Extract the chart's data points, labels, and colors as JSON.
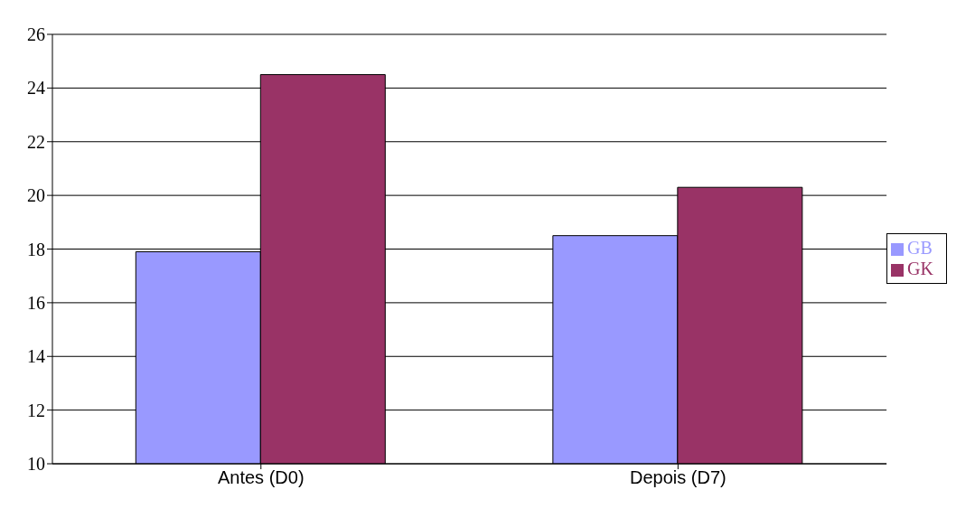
{
  "chart_data": {
    "type": "bar",
    "categories": [
      "Antes (D0)",
      "Depois (D7)"
    ],
    "series": [
      {
        "name": "GB",
        "color": "#9999ff",
        "values": [
          17.9,
          18.5
        ]
      },
      {
        "name": "GK",
        "color": "#993366",
        "values": [
          24.5,
          20.3
        ]
      }
    ],
    "ylim": [
      10,
      26
    ],
    "yticks": [
      10,
      12,
      14,
      16,
      18,
      20,
      22,
      24,
      26
    ],
    "grid": "y",
    "legend": "right"
  }
}
